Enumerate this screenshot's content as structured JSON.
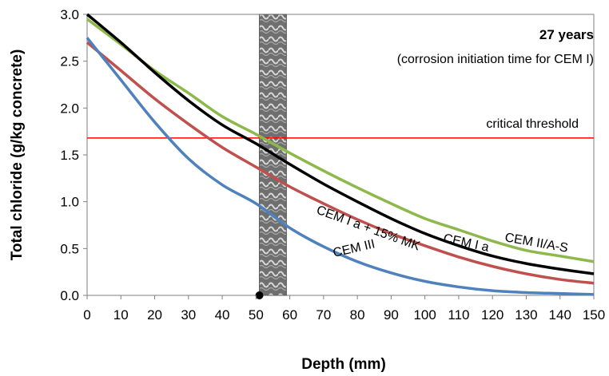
{
  "chart_data": {
    "type": "line",
    "xlabel": "Depth (mm)",
    "ylabel": "Total chloride (g/kg concrete)",
    "xlim": [
      0,
      150
    ],
    "ylim": [
      0,
      3.0
    ],
    "xticks": [
      "0",
      "10",
      "20",
      "30",
      "40",
      "50",
      "60",
      "70",
      "80",
      "90",
      "100",
      "110",
      "120",
      "130",
      "140",
      "150"
    ],
    "yticks": [
      "0.0",
      "0.5",
      "1.0",
      "1.5",
      "2.0",
      "2.5",
      "3.0"
    ],
    "grid": false,
    "x": [
      0,
      10,
      20,
      30,
      40,
      50,
      60,
      70,
      80,
      90,
      100,
      110,
      120,
      130,
      140,
      150
    ],
    "series": [
      {
        "name": "CEM II/A-S",
        "color": "#8DB84A",
        "values": [
          2.95,
          2.68,
          2.4,
          2.16,
          1.91,
          1.72,
          1.52,
          1.33,
          1.15,
          0.98,
          0.82,
          0.7,
          0.58,
          0.48,
          0.42,
          0.36
        ]
      },
      {
        "name": "CEM I a",
        "color": "#000000",
        "values": [
          3.0,
          2.7,
          2.38,
          2.08,
          1.82,
          1.62,
          1.4,
          1.19,
          1.0,
          0.82,
          0.66,
          0.53,
          0.42,
          0.34,
          0.28,
          0.23
        ]
      },
      {
        "name": "CEM I a + 15% MK",
        "color": "#C0504D",
        "values": [
          2.7,
          2.4,
          2.1,
          1.83,
          1.58,
          1.37,
          1.16,
          0.98,
          0.81,
          0.66,
          0.53,
          0.41,
          0.31,
          0.23,
          0.17,
          0.13
        ]
      },
      {
        "name": "CEM III",
        "color": "#4F81BD",
        "values": [
          2.75,
          2.3,
          1.85,
          1.46,
          1.18,
          0.98,
          0.72,
          0.52,
          0.36,
          0.24,
          0.15,
          0.09,
          0.05,
          0.03,
          0.02,
          0.01
        ]
      }
    ],
    "threshold": {
      "label": "critical threshold",
      "value": 1.68,
      "color": "#FF0000"
    },
    "rebar": {
      "x_range": [
        51,
        59
      ]
    },
    "marker": {
      "x": 51,
      "y": 0
    },
    "annotations": [
      "27 years",
      "(corrosion initiation  time for CEM I)"
    ]
  }
}
